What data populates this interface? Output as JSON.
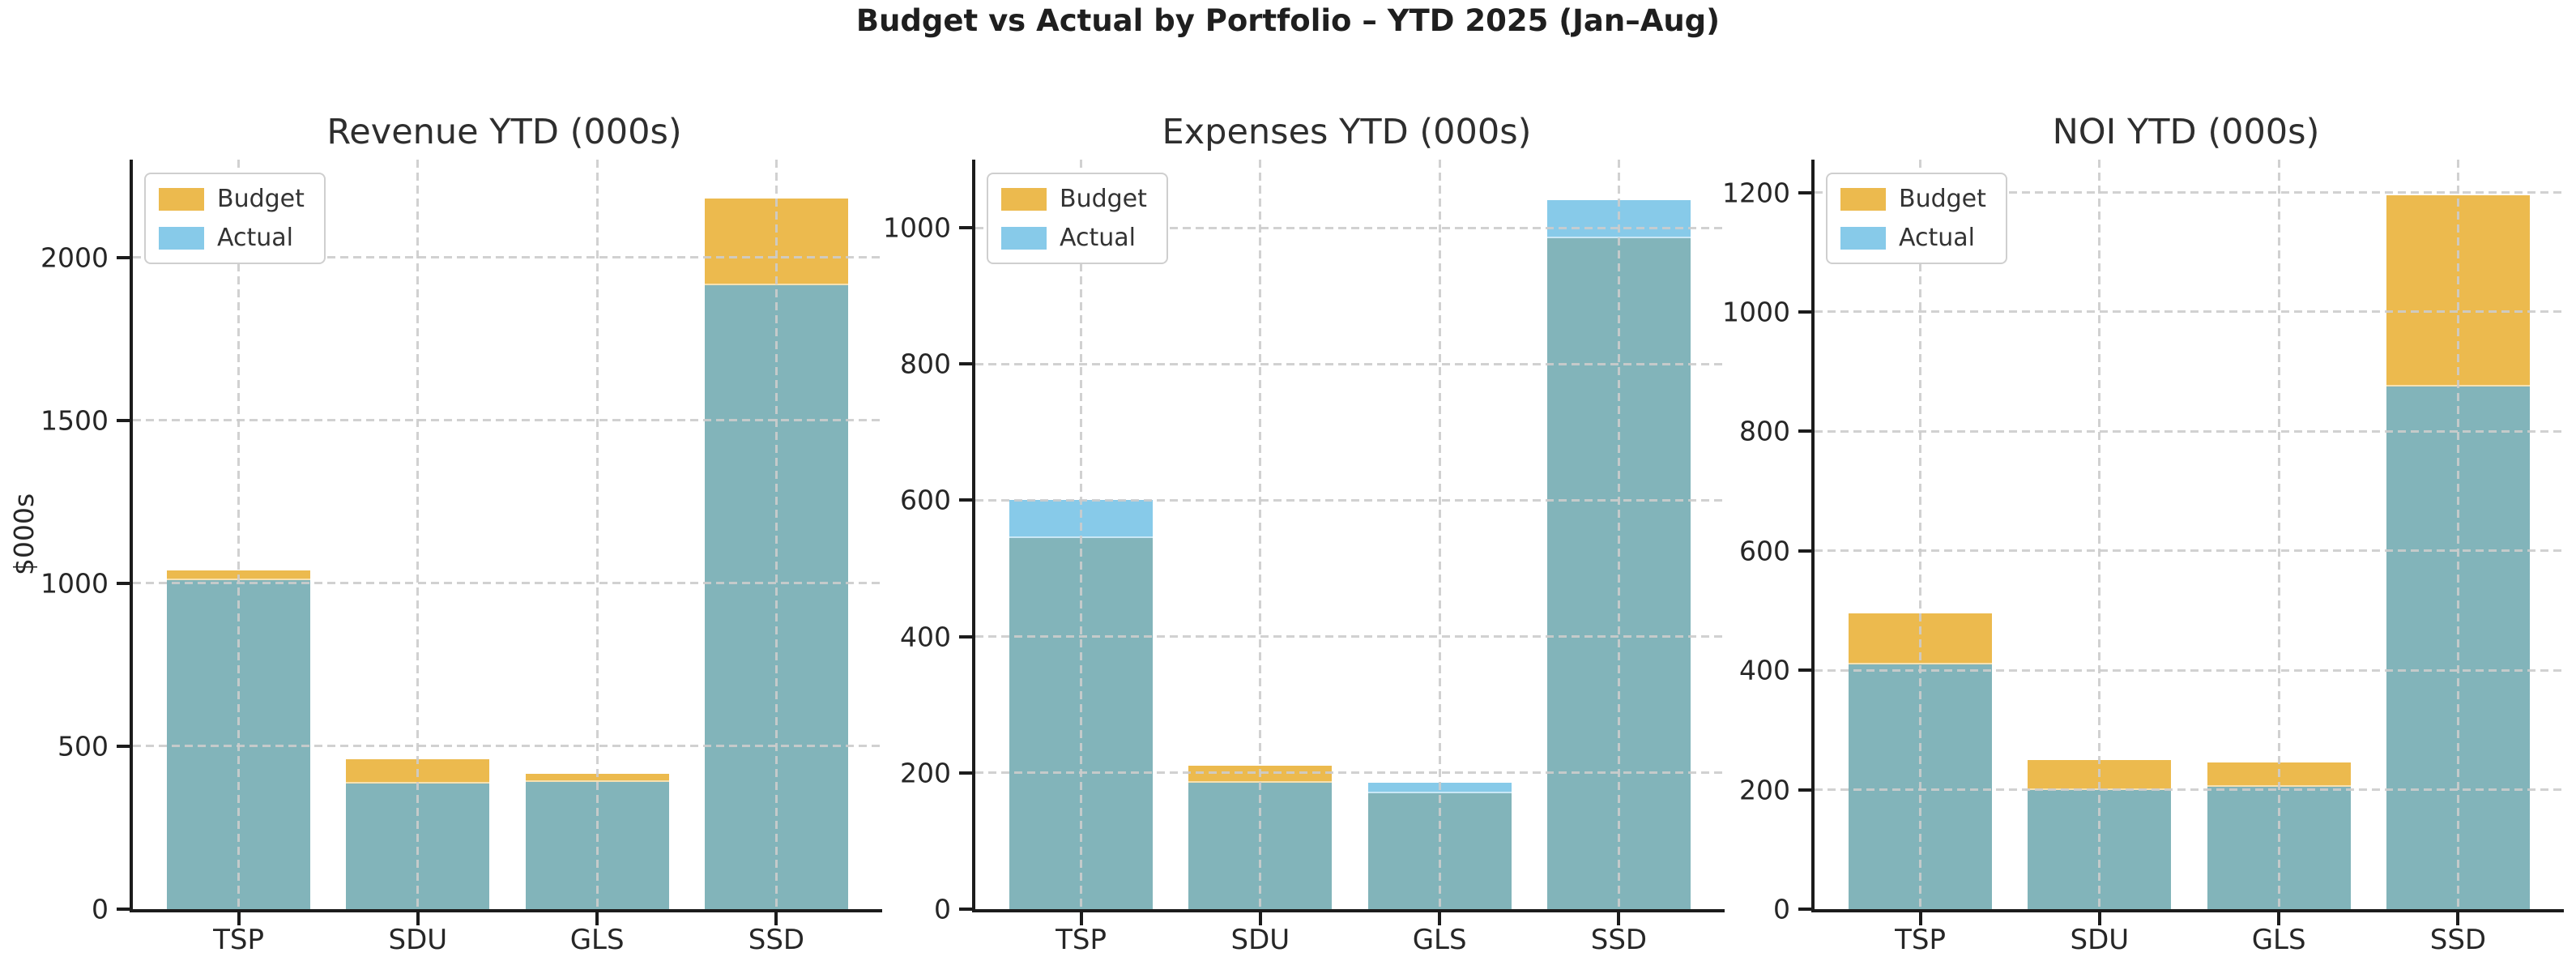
{
  "figure": {
    "title": "Budget vs Actual by Portfolio – YTD 2025 (Jan–Aug)",
    "background": "#ffffff",
    "colors": {
      "budget": "#ECBA4E",
      "actual": "#87CAE9",
      "overlap": "#82B4BA",
      "grid": "#cccccc",
      "axis": "#1c1c1c"
    },
    "legend": {
      "labels": [
        "Budget",
        "Actual"
      ],
      "position": "upper left"
    }
  },
  "chart_data": [
    {
      "type": "bar",
      "title": "Revenue YTD (000s)",
      "ylabel": "$000s",
      "categories": [
        "TSP",
        "SDU",
        "GLS",
        "SSD"
      ],
      "series": [
        {
          "name": "Budget",
          "values": [
            1040,
            460,
            415,
            2180
          ]
        },
        {
          "name": "Actual",
          "values": [
            1010,
            385,
            390,
            1915
          ]
        }
      ],
      "yticks": [
        0,
        500,
        1000,
        1500,
        2000
      ],
      "ylim": [
        0,
        2300
      ],
      "grid": true,
      "legend_position": "upper left"
    },
    {
      "type": "bar",
      "title": "Expenses YTD (000s)",
      "ylabel": "",
      "categories": [
        "TSP",
        "SDU",
        "GLS",
        "SSD"
      ],
      "series": [
        {
          "name": "Budget",
          "values": [
            545,
            210,
            170,
            985
          ]
        },
        {
          "name": "Actual",
          "values": [
            600,
            185,
            185,
            1040
          ]
        }
      ],
      "yticks": [
        0,
        200,
        400,
        600,
        800,
        1000
      ],
      "ylim": [
        0,
        1100
      ],
      "grid": true,
      "legend_position": "upper left"
    },
    {
      "type": "bar",
      "title": "NOI YTD (000s)",
      "ylabel": "",
      "categories": [
        "TSP",
        "SDU",
        "GLS",
        "SSD"
      ],
      "series": [
        {
          "name": "Budget",
          "values": [
            495,
            250,
            245,
            1195
          ]
        },
        {
          "name": "Actual",
          "values": [
            410,
            200,
            205,
            875
          ]
        }
      ],
      "yticks": [
        0,
        200,
        400,
        600,
        800,
        1000,
        1200
      ],
      "ylim": [
        0,
        1255
      ],
      "grid": true,
      "legend_position": "upper left"
    }
  ]
}
